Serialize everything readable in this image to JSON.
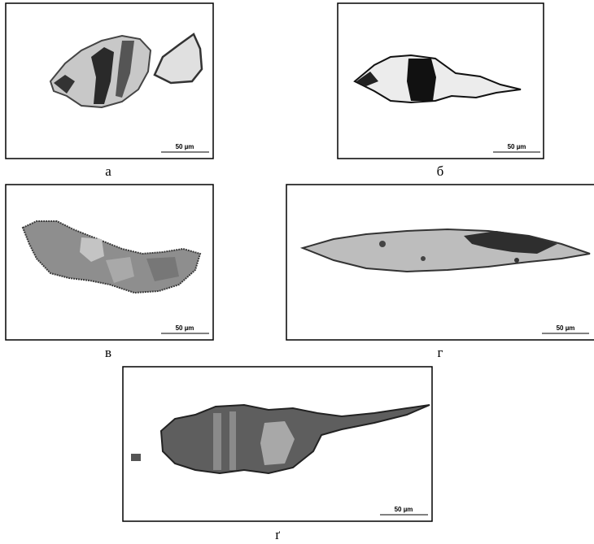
{
  "panels": [
    {
      "label": "а",
      "scale": "50 µm"
    },
    {
      "label": "б",
      "scale": "50 µm"
    },
    {
      "label": "в",
      "scale": "50 µm"
    },
    {
      "label": "г",
      "scale": "50 µm"
    },
    {
      "label": "ґ",
      "scale": "50 µm"
    }
  ]
}
